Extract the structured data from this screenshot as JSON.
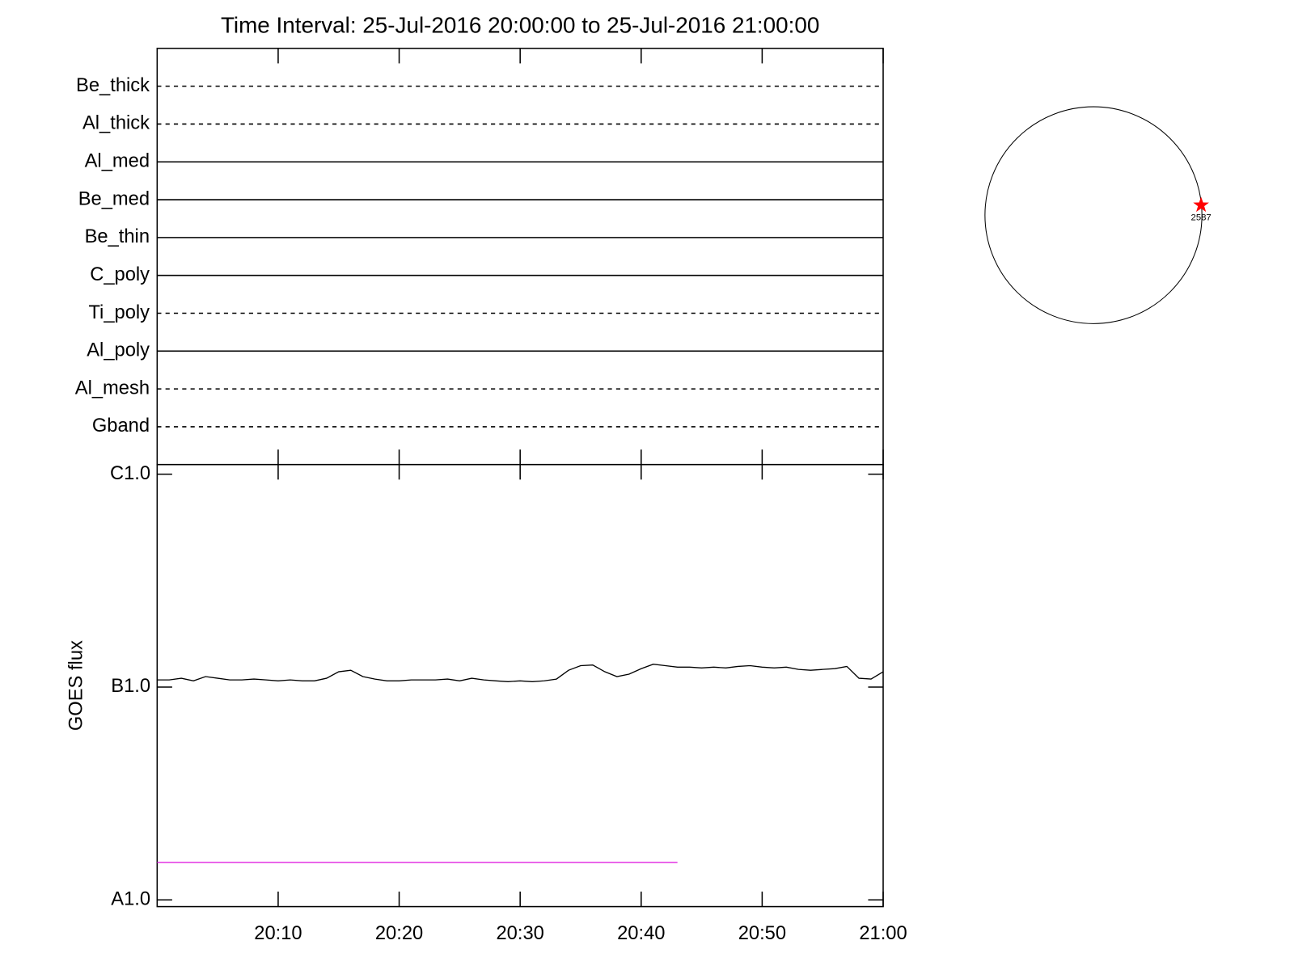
{
  "chart_data": {
    "type": "line",
    "title": "Time Interval: 25-Jul-2016 20:00:00 to 25-Jul-2016 21:00:00",
    "instrument_rows": [
      {
        "name": "Be_thick",
        "style": "dashed"
      },
      {
        "name": "Al_thick",
        "style": "dashed"
      },
      {
        "name": "Al_med",
        "style": "solid"
      },
      {
        "name": "Be_med",
        "style": "solid"
      },
      {
        "name": "Be_thin",
        "style": "solid"
      },
      {
        "name": "C_poly",
        "style": "solid"
      },
      {
        "name": "Ti_poly",
        "style": "dashed"
      },
      {
        "name": "Al_poly",
        "style": "solid"
      },
      {
        "name": "Al_mesh",
        "style": "dashed"
      },
      {
        "name": "Gband",
        "style": "dashed"
      }
    ],
    "ylabel": "GOES flux",
    "log_y": true,
    "ylim": [
      9.3e-09,
      1.11e-06
    ],
    "yticks": [
      {
        "value": 1e-06,
        "label": "C1.0"
      },
      {
        "value": 1e-07,
        "label": "B1.0"
      },
      {
        "value": 1e-08,
        "label": "A1.0"
      }
    ],
    "xlim": [
      "20:00",
      "21:00"
    ],
    "xticks": [
      "20:10",
      "20:20",
      "20:30",
      "20:40",
      "20:50",
      "21:00"
    ],
    "series": [
      {
        "color": "#000000",
        "x": [
          "20:00",
          "20:01",
          "20:02",
          "20:03",
          "20:04",
          "20:05",
          "20:06",
          "20:07",
          "20:08",
          "20:09",
          "20:10",
          "20:11",
          "20:12",
          "20:13",
          "20:14",
          "20:15",
          "20:16",
          "20:17",
          "20:18",
          "20:19",
          "20:20",
          "20:21",
          "20:22",
          "20:23",
          "20:24",
          "20:25",
          "20:26",
          "20:27",
          "20:28",
          "20:29",
          "20:30",
          "20:31",
          "20:32",
          "20:33",
          "20:34",
          "20:35",
          "20:36",
          "20:37",
          "20:38",
          "20:39",
          "20:40",
          "20:41",
          "20:42",
          "20:43",
          "20:44",
          "20:45",
          "20:46",
          "20:47",
          "20:48",
          "20:49",
          "20:50",
          "20:51",
          "20:52",
          "20:53",
          "20:54",
          "20:55",
          "20:56",
          "20:57",
          "20:58",
          "20:59",
          "21:00"
        ],
        "values": [
          1.08e-07,
          1.08e-07,
          1.1e-07,
          1.07e-07,
          1.12e-07,
          1.1e-07,
          1.08e-07,
          1.08e-07,
          1.09e-07,
          1.08e-07,
          1.07e-07,
          1.08e-07,
          1.07e-07,
          1.07e-07,
          1.1e-07,
          1.18e-07,
          1.2e-07,
          1.12e-07,
          1.09e-07,
          1.07e-07,
          1.07e-07,
          1.08e-07,
          1.08e-07,
          1.08e-07,
          1.09e-07,
          1.07e-07,
          1.1e-07,
          1.08e-07,
          1.07e-07,
          1.06e-07,
          1.07e-07,
          1.06e-07,
          1.07e-07,
          1.09e-07,
          1.2e-07,
          1.26e-07,
          1.27e-07,
          1.18e-07,
          1.12e-07,
          1.15e-07,
          1.22e-07,
          1.28e-07,
          1.26e-07,
          1.24e-07,
          1.24e-07,
          1.23e-07,
          1.24e-07,
          1.23e-07,
          1.25e-07,
          1.26e-07,
          1.24e-07,
          1.23e-07,
          1.24e-07,
          1.21e-07,
          1.2e-07,
          1.21e-07,
          1.22e-07,
          1.25e-07,
          1.1e-07,
          1.09e-07,
          1.18e-07
        ]
      },
      {
        "color": "#e020e0",
        "x": [
          "20:00",
          "20:43"
        ],
        "values": [
          1.5e-08,
          1.5e-08
        ]
      }
    ],
    "solar_disk": {
      "markers": [
        {
          "label": "2587",
          "color": "#ff0000"
        }
      ]
    }
  }
}
